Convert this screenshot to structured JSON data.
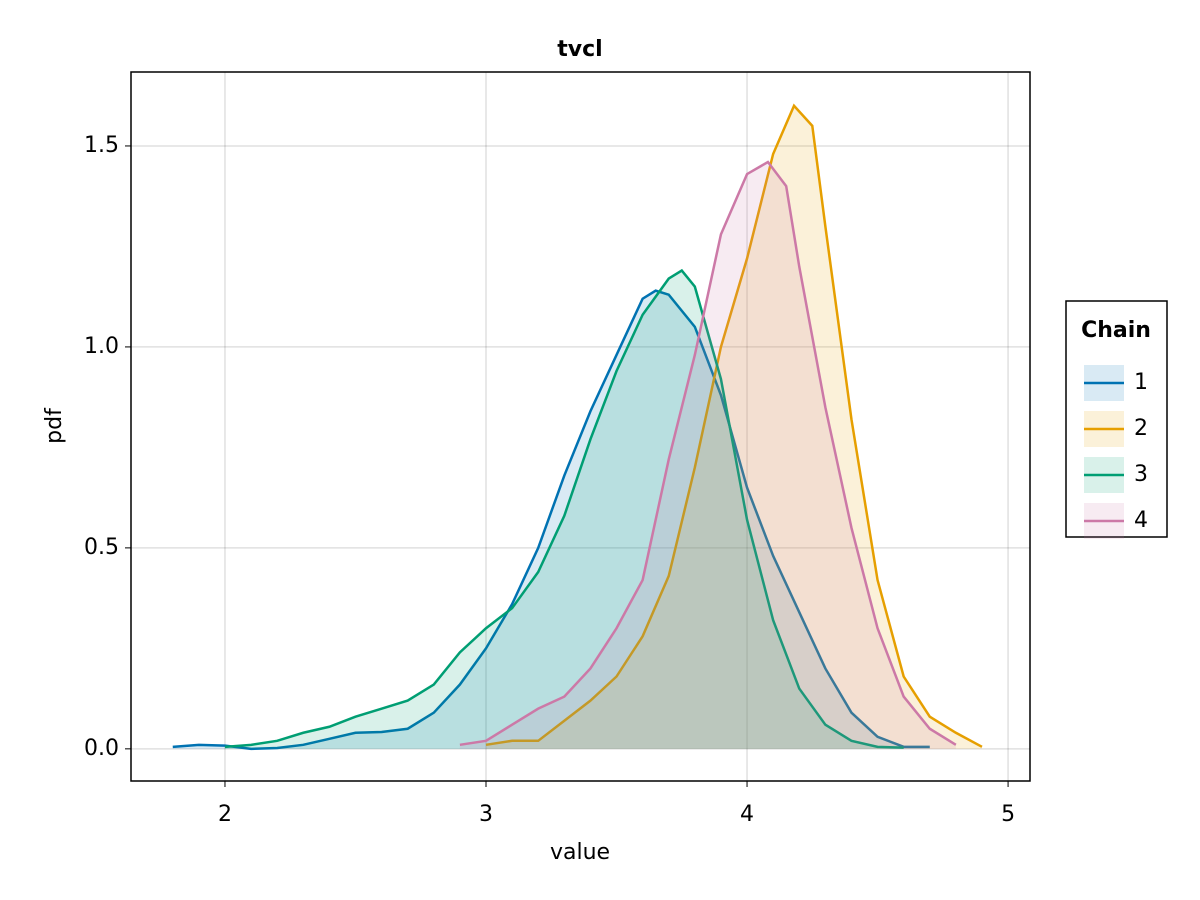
{
  "chart_data": {
    "type": "density",
    "title": "tvcl",
    "x_label": "value",
    "y_label": "pdf",
    "xlim": [
      1.64,
      5.084
    ],
    "ylim": [
      -0.08,
      1.684
    ],
    "xticks": [
      2,
      3,
      4,
      5
    ],
    "yticks": [
      {
        "value": 0,
        "label": "0.0"
      },
      0.5,
      {
        "value": 1,
        "label": "1.0"
      },
      1.5
    ],
    "grid": true,
    "legend_title": "Chain",
    "legend_position": "right",
    "series": [
      {
        "name": "1",
        "color": "#0072b2",
        "x": [
          1.8,
          1.9,
          2.0,
          2.1,
          2.2,
          2.3,
          2.4,
          2.5,
          2.6,
          2.7,
          2.8,
          2.9,
          3.0,
          3.1,
          3.2,
          3.3,
          3.4,
          3.5,
          3.6,
          3.65,
          3.7,
          3.8,
          3.9,
          4.0,
          4.1,
          4.2,
          4.3,
          4.4,
          4.5,
          4.6,
          4.7
        ],
        "values": [
          0.005,
          0.01,
          0.008,
          0.0,
          0.002,
          0.01,
          0.025,
          0.04,
          0.042,
          0.05,
          0.09,
          0.16,
          0.25,
          0.36,
          0.5,
          0.68,
          0.84,
          0.98,
          1.12,
          1.14,
          1.13,
          1.05,
          0.88,
          0.65,
          0.48,
          0.34,
          0.2,
          0.09,
          0.03,
          0.005,
          0.005
        ]
      },
      {
        "name": "2",
        "color": "#e69f00",
        "x": [
          3.0,
          3.1,
          3.2,
          3.3,
          3.4,
          3.5,
          3.6,
          3.7,
          3.8,
          3.9,
          4.0,
          4.1,
          4.18,
          4.25,
          4.3,
          4.4,
          4.5,
          4.6,
          4.7,
          4.8,
          4.9
        ],
        "values": [
          0.01,
          0.02,
          0.02,
          0.07,
          0.12,
          0.18,
          0.28,
          0.43,
          0.7,
          1.0,
          1.22,
          1.48,
          1.6,
          1.55,
          1.3,
          0.82,
          0.42,
          0.18,
          0.08,
          0.04,
          0.005
        ]
      },
      {
        "name": "3",
        "color": "#009e73",
        "x": [
          2.0,
          2.1,
          2.2,
          2.3,
          2.4,
          2.5,
          2.6,
          2.7,
          2.8,
          2.9,
          3.0,
          3.1,
          3.2,
          3.3,
          3.4,
          3.5,
          3.6,
          3.7,
          3.75,
          3.8,
          3.9,
          4.0,
          4.1,
          4.2,
          4.3,
          4.4,
          4.5,
          4.6
        ],
        "values": [
          0.005,
          0.01,
          0.02,
          0.04,
          0.055,
          0.08,
          0.1,
          0.12,
          0.16,
          0.24,
          0.3,
          0.35,
          0.44,
          0.58,
          0.77,
          0.94,
          1.08,
          1.17,
          1.19,
          1.15,
          0.92,
          0.57,
          0.32,
          0.15,
          0.06,
          0.02,
          0.005,
          0.003
        ]
      },
      {
        "name": "4",
        "color": "#cc79a7",
        "x": [
          2.9,
          3.0,
          3.1,
          3.2,
          3.3,
          3.4,
          3.5,
          3.6,
          3.7,
          3.8,
          3.9,
          4.0,
          4.08,
          4.15,
          4.2,
          4.3,
          4.4,
          4.5,
          4.6,
          4.7,
          4.8
        ],
        "values": [
          0.01,
          0.02,
          0.06,
          0.1,
          0.13,
          0.2,
          0.3,
          0.42,
          0.72,
          0.98,
          1.28,
          1.43,
          1.46,
          1.4,
          1.2,
          0.85,
          0.55,
          0.3,
          0.13,
          0.05,
          0.01
        ]
      }
    ]
  }
}
